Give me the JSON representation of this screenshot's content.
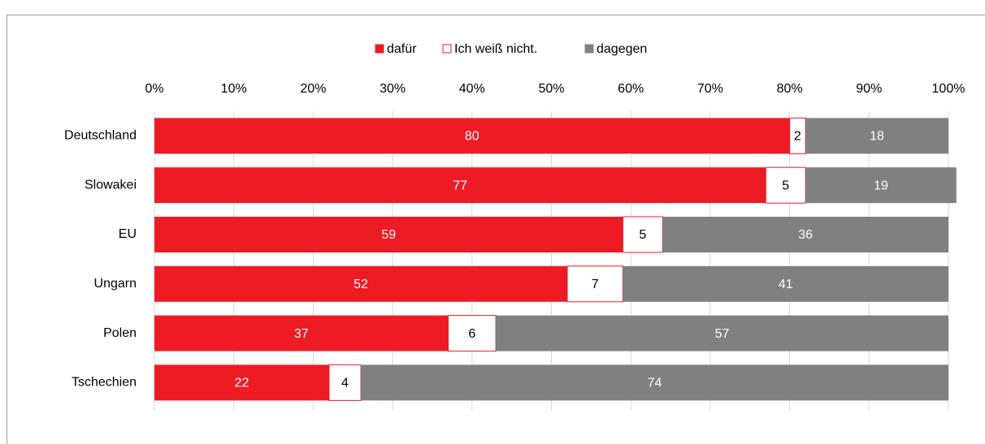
{
  "chart_data": {
    "type": "stacked-bar-horizontal",
    "categories": [
      "Deutschland",
      "Slowakei",
      "EU",
      "Ungarn",
      "Polen",
      "Tschechien"
    ],
    "series": [
      {
        "name": "dafür",
        "color": "#ed1c24",
        "values": [
          80,
          77,
          59,
          52,
          37,
          22
        ]
      },
      {
        "name": "Ich weiß nicht.",
        "color": "#ffffff",
        "values": [
          2,
          5,
          5,
          7,
          6,
          4
        ]
      },
      {
        "name": "dagegen",
        "color": "#808080",
        "values": [
          18,
          19,
          36,
          41,
          57,
          74
        ]
      }
    ],
    "xlim": [
      0,
      100
    ],
    "xticks": [
      {
        "value": 0,
        "label": "0%"
      },
      {
        "value": 10,
        "label": "10%"
      },
      {
        "value": 20,
        "label": "20%"
      },
      {
        "value": 30,
        "label": "30%"
      },
      {
        "value": 40,
        "label": "40%"
      },
      {
        "value": 50,
        "label": "50%"
      },
      {
        "value": 60,
        "label": "60%"
      },
      {
        "value": 70,
        "label": "70%"
      },
      {
        "value": 80,
        "label": "80%"
      },
      {
        "value": 90,
        "label": "90%"
      },
      {
        "value": 100,
        "label": "100%"
      }
    ],
    "grid": true,
    "legend": "top"
  }
}
